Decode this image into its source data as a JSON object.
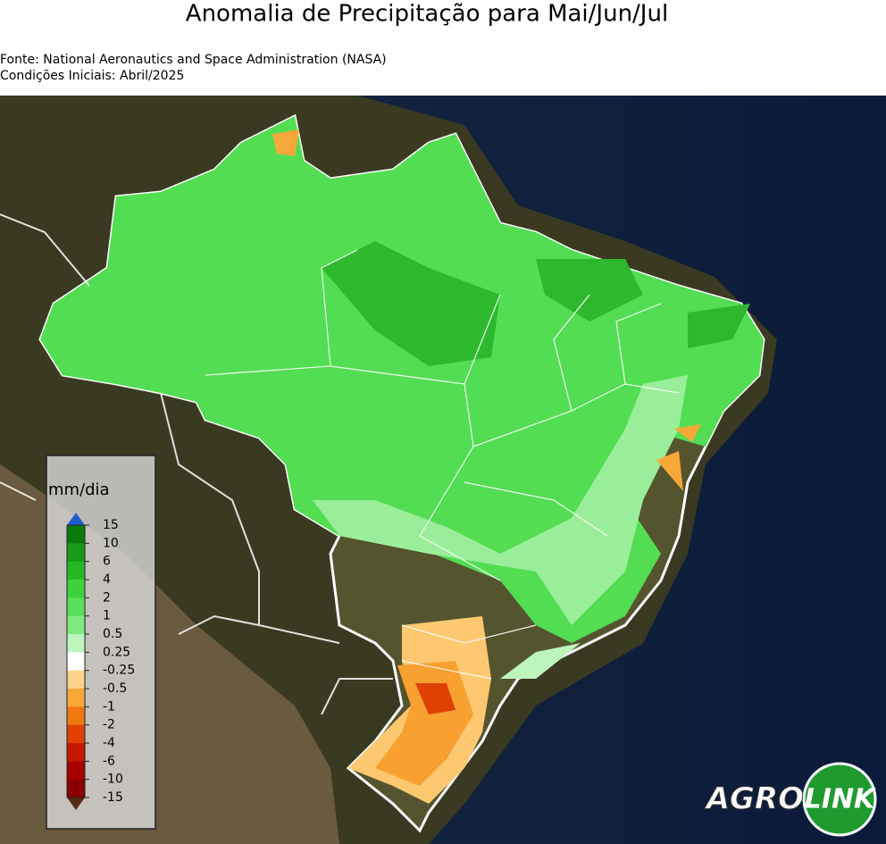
{
  "header": {
    "title": "Anomalia de Precipitação para Mai/Jun/Jul",
    "source": "Fonte: National Aeronautics and Space Administration (NASA)",
    "initial_conditions": "Condições Iniciais: Abril/2025"
  },
  "legend": {
    "unit": "mm/dia",
    "ticks": [
      "15",
      "10",
      "6",
      "4",
      "2",
      "1",
      "0.5",
      "0.25",
      "-0.25",
      "-0.5",
      "-1",
      "-2",
      "-4",
      "-6",
      "-10",
      "-15"
    ],
    "band_colors": [
      "#0b7a0b",
      "#169a16",
      "#27b827",
      "#3dd13d",
      "#5ae05a",
      "#7fea7f",
      "#bdf5bd",
      "#ffffff",
      "#fdd28a",
      "#f8a838",
      "#f07810",
      "#e04000",
      "#c81800",
      "#a80000",
      "#8a0000"
    ],
    "over_color": "#1e5fd0",
    "under_color": "#5a2a10"
  },
  "logo": {
    "left": "AGRO",
    "right": "LINK"
  }
}
